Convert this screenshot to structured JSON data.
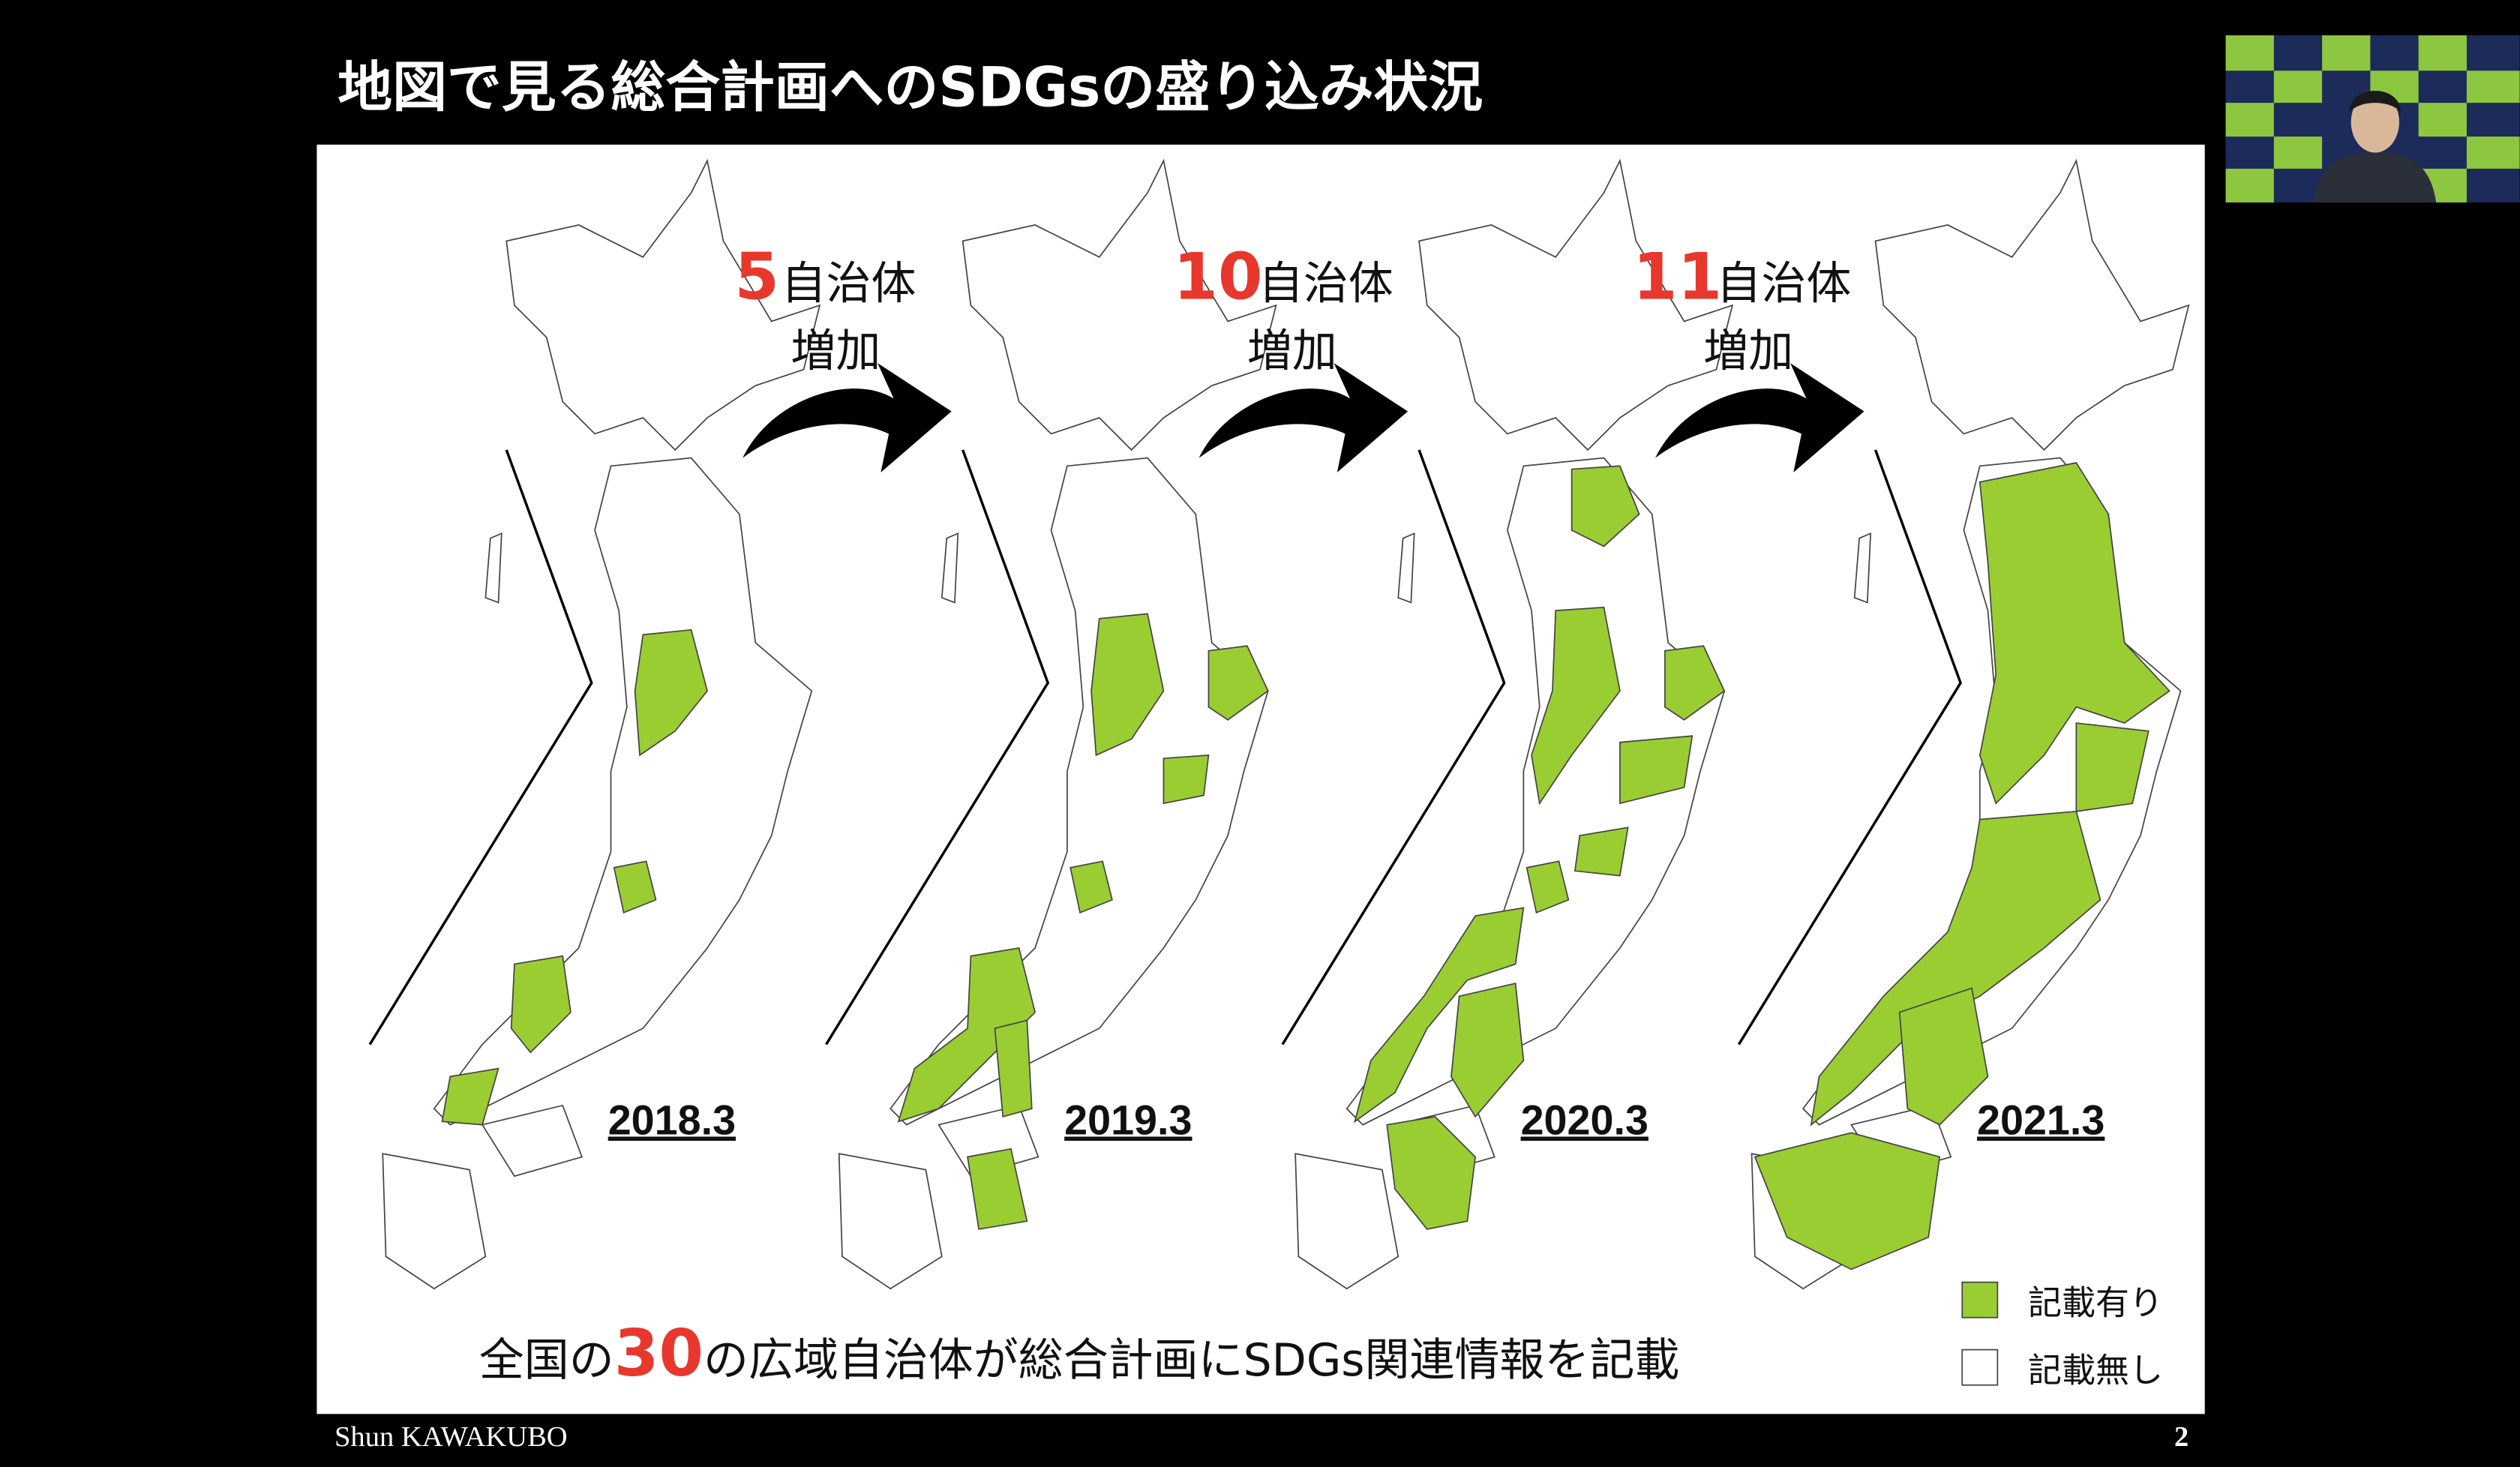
{
  "title": "地図で見る総合計画へのSDGsの盛り込み状況",
  "increases": [
    {
      "count": "5",
      "unit": "自治体",
      "verb": "増加"
    },
    {
      "count": "10",
      "unit": "自治体",
      "verb": "増加"
    },
    {
      "count": "11",
      "unit": "自治体",
      "verb": "増加"
    }
  ],
  "maps": [
    {
      "label": "2018.3"
    },
    {
      "label": "2019.3"
    },
    {
      "label": "2020.3"
    },
    {
      "label": "2021.3"
    }
  ],
  "summary": {
    "before": "全国の",
    "count": "30",
    "after": "の広域自治体が総合計画にSDGs関連情報を記載"
  },
  "legend": [
    {
      "label": "記載有り"
    },
    {
      "label": "記載無し"
    }
  ],
  "footer": {
    "author": "Shun KAWAKUBO",
    "page": "2"
  }
}
